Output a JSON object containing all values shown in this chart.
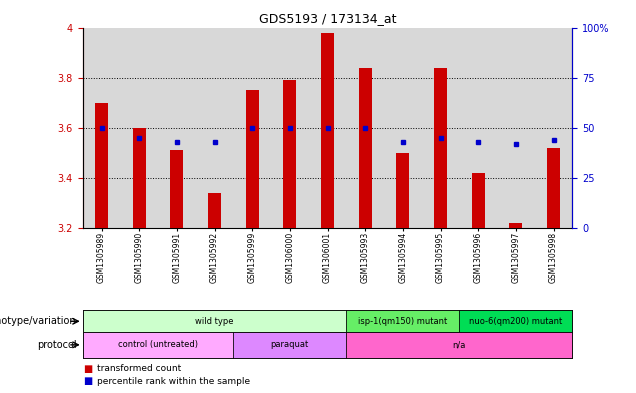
{
  "title": "GDS5193 / 173134_at",
  "samples": [
    "GSM1305989",
    "GSM1305990",
    "GSM1305991",
    "GSM1305992",
    "GSM1305999",
    "GSM1306000",
    "GSM1306001",
    "GSM1305993",
    "GSM1305994",
    "GSM1305995",
    "GSM1305996",
    "GSM1305997",
    "GSM1305998"
  ],
  "red_values": [
    3.7,
    3.6,
    3.51,
    3.34,
    3.75,
    3.79,
    3.98,
    3.84,
    3.5,
    3.84,
    3.42,
    3.22,
    3.52
  ],
  "blue_pct": [
    50,
    45,
    43,
    43,
    50,
    50,
    50,
    50,
    43,
    45,
    43,
    42,
    44
  ],
  "ylim_left": [
    3.2,
    4.0
  ],
  "ylim_right": [
    0,
    100
  ],
  "yticks_left": [
    3.2,
    3.4,
    3.6,
    3.8,
    4.0
  ],
  "yticks_right": [
    0,
    25,
    50,
    75,
    100
  ],
  "hlines": [
    3.4,
    3.6,
    3.8
  ],
  "genotype_groups": [
    {
      "label": "wild type",
      "start": 0,
      "end": 7,
      "color": "#ccffcc"
    },
    {
      "label": "isp-1(qm150) mutant",
      "start": 7,
      "end": 10,
      "color": "#66ee66"
    },
    {
      "label": "nuo-6(qm200) mutant",
      "start": 10,
      "end": 13,
      "color": "#00dd55"
    }
  ],
  "protocol_groups": [
    {
      "label": "control (untreated)",
      "start": 0,
      "end": 4,
      "color": "#ffaaff"
    },
    {
      "label": "paraquat",
      "start": 4,
      "end": 7,
      "color": "#dd88ff"
    },
    {
      "label": "n/a",
      "start": 7,
      "end": 13,
      "color": "#ff66cc"
    }
  ],
  "bar_width": 0.35,
  "red_color": "#cc0000",
  "blue_color": "#0000cc",
  "col_bg_color": "#d8d8d8",
  "label_color_left": "#cc0000",
  "label_color_right": "#0000cc",
  "tick_label_fontsize": 7,
  "geno_label_fontsize": 7,
  "proto_label_fontsize": 7
}
